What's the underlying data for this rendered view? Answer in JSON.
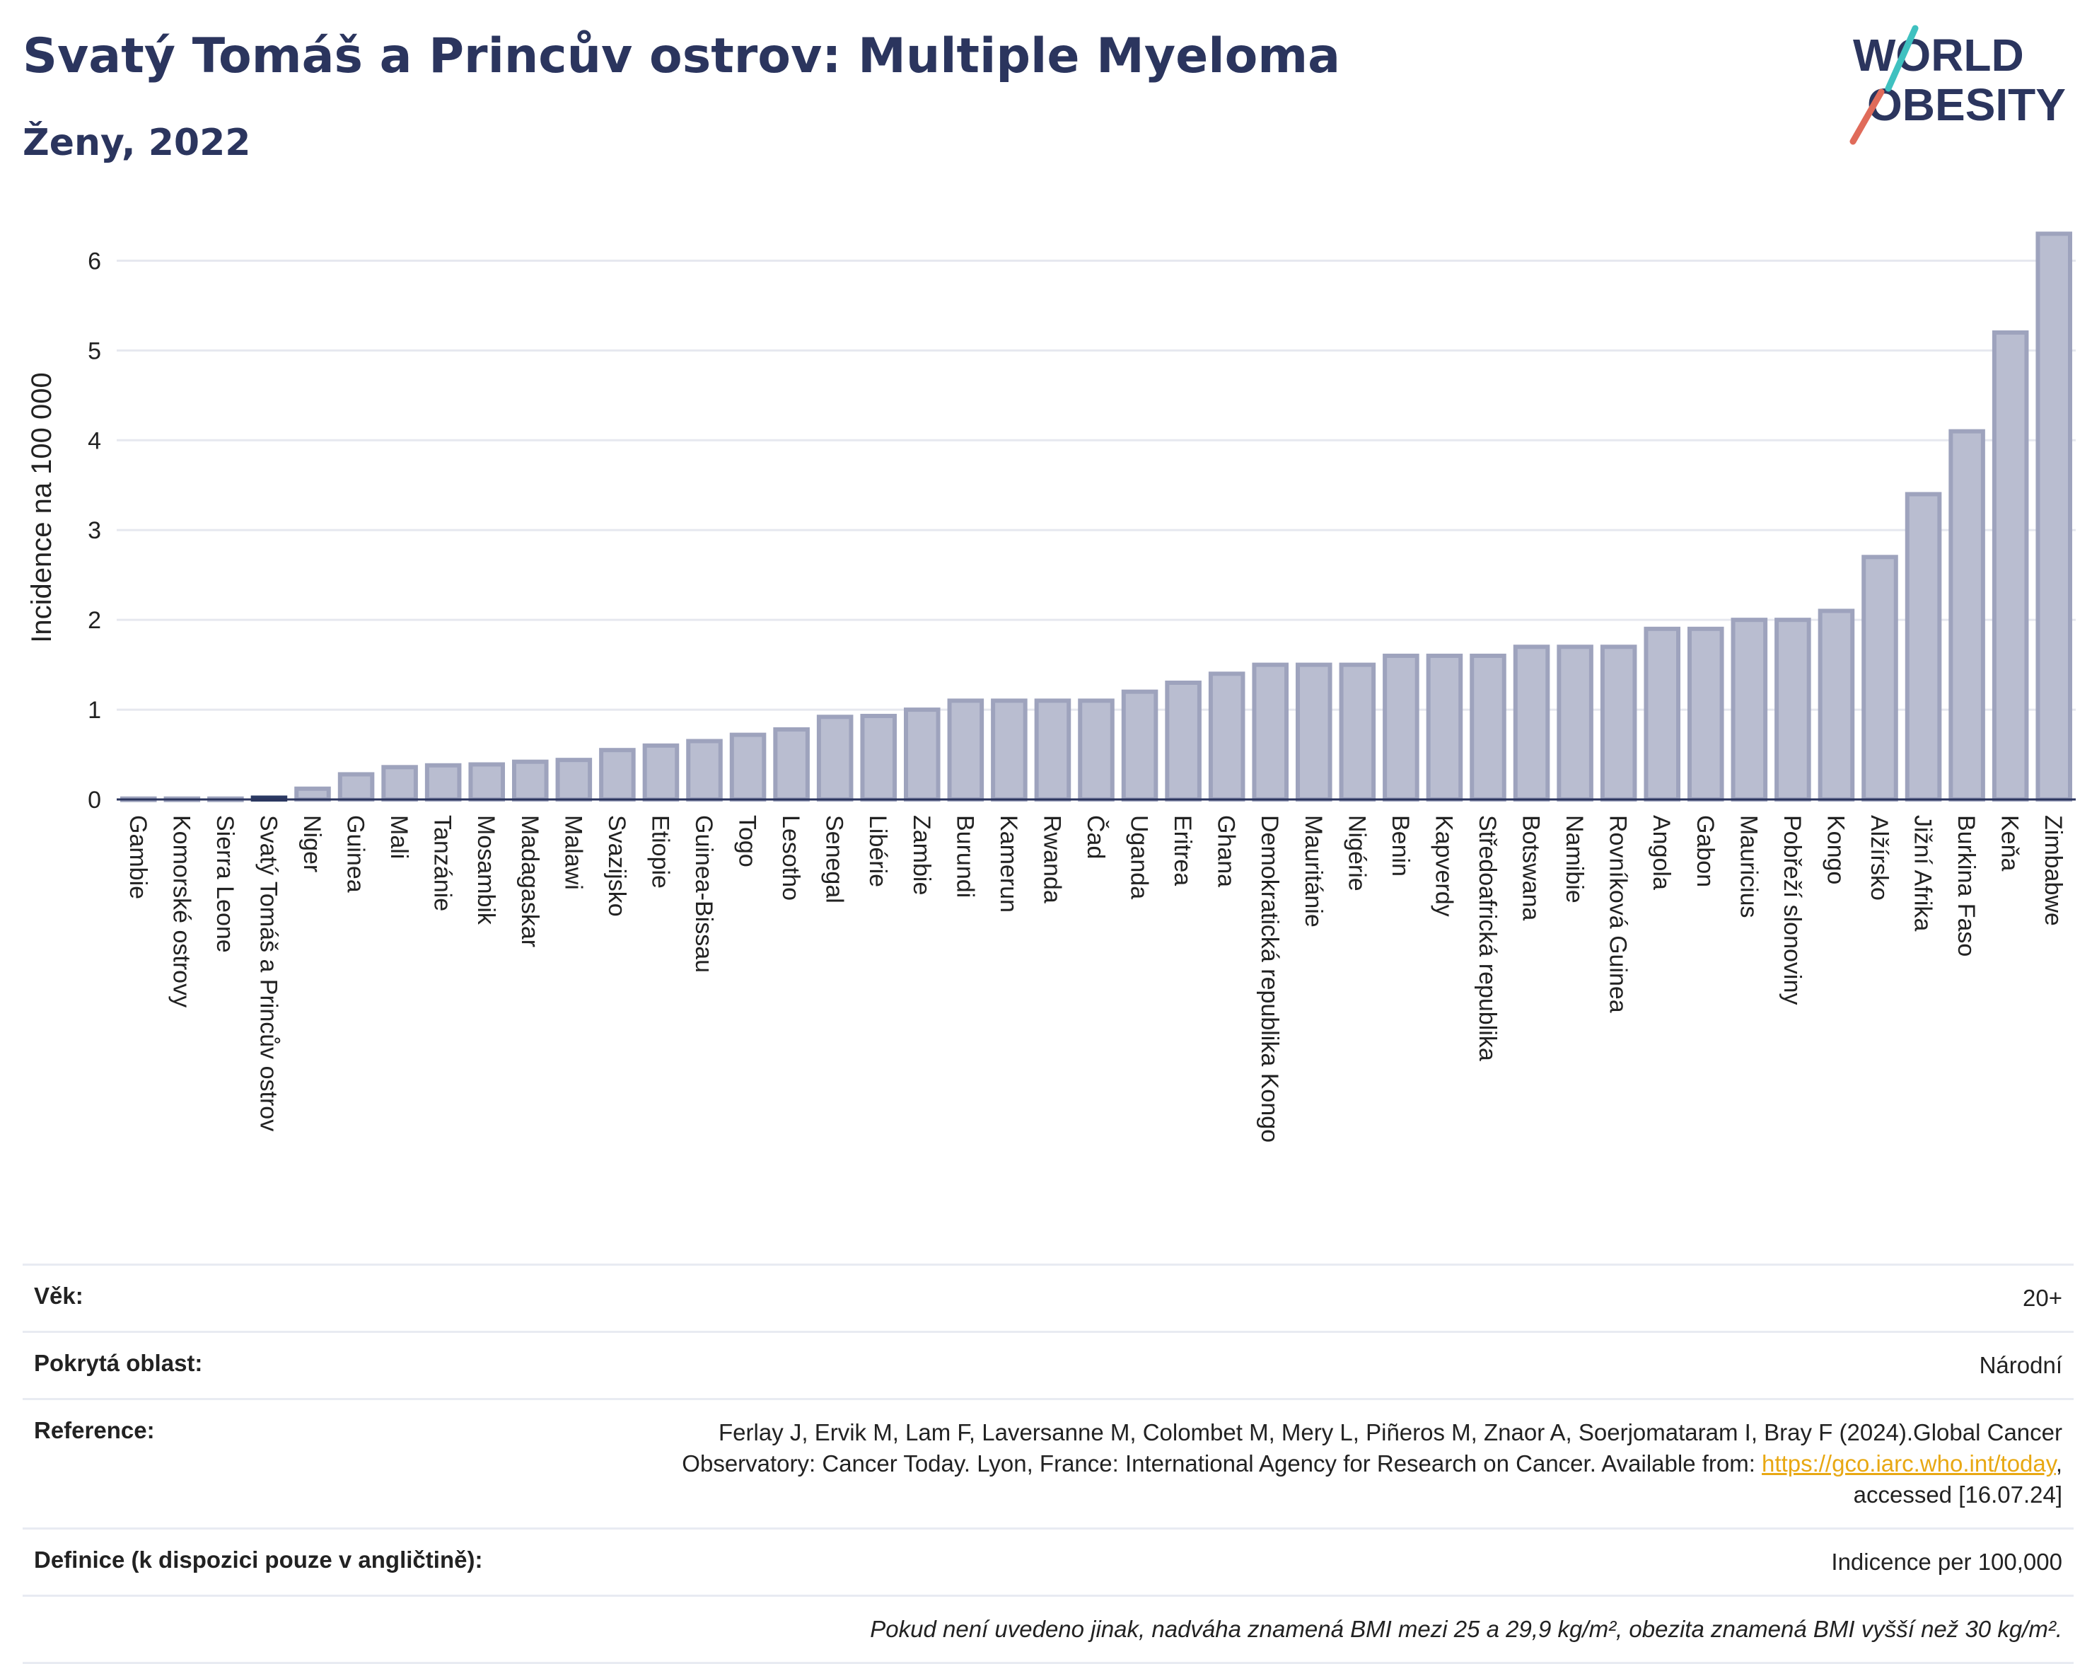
{
  "header": {
    "title": "Svatý Tomáš a Princův ostrov: Multiple Myeloma",
    "subtitle": "Ženy, 2022"
  },
  "logo": {
    "line1": "WORLD",
    "line2": "OBESITY"
  },
  "colors": {
    "bar": "#b9bdd0",
    "bar_border": "#9ea3bd",
    "highlight": "#2b3a63",
    "text": "#2b355e",
    "grid": "#e6e8ef"
  },
  "chart_data": {
    "type": "bar",
    "ylabel": "Incidence na 100 000",
    "ylim": [
      0,
      6.5
    ],
    "yticks": [
      0,
      1,
      2,
      3,
      4,
      5,
      6
    ],
    "highlight": "Svatý Tomáš a Princův ostrov",
    "categories": [
      "Gambie",
      "Komorské ostrovy",
      "Sierra Leone",
      "Svatý Tomáš a Princův ostrov",
      "Niger",
      "Guinea",
      "Mali",
      "Tanzánie",
      "Mosambik",
      "Madagaskar",
      "Malawi",
      "Svazijsko",
      "Etiopie",
      "Guinea-Bissau",
      "Togo",
      "Lesotho",
      "Senegal",
      "Libérie",
      "Zambie",
      "Burundi",
      "Kamerun",
      "Rwanda",
      "Čad",
      "Uganda",
      "Eritrea",
      "Ghana",
      "Demokratická republika Kongo",
      "Mauritánie",
      "Nigérie",
      "Benin",
      "Kapverdy",
      "Středoafrická republika",
      "Botswana",
      "Namibie",
      "Rovníková Guinea",
      "Angola",
      "Gabon",
      "Mauricius",
      "Pobřeží slonoviny",
      "Kongo",
      "Alžírsko",
      "Jižní Afrika",
      "Burkina Faso",
      "Keňa",
      "Zimbabwe"
    ],
    "values": [
      0.01,
      0.01,
      0.01,
      0.02,
      0.12,
      0.28,
      0.36,
      0.38,
      0.39,
      0.42,
      0.44,
      0.55,
      0.6,
      0.65,
      0.72,
      0.78,
      0.92,
      0.93,
      1.0,
      1.1,
      1.1,
      1.1,
      1.1,
      1.2,
      1.3,
      1.4,
      1.5,
      1.5,
      1.5,
      1.6,
      1.6,
      1.6,
      1.7,
      1.7,
      1.7,
      1.9,
      1.9,
      2.0,
      2.0,
      2.1,
      2.7,
      3.4,
      4.1,
      5.2,
      6.3
    ]
  },
  "info": {
    "age_label": "Věk:",
    "age_value": "20+",
    "area_label": "Pokrytá oblast:",
    "area_value": "Národní",
    "ref_label": "Reference:",
    "ref_text_1": "Ferlay J, Ervik M, Lam F, Laversanne M, Colombet M, Mery L, Piñeros M, Znaor A, Soerjomataram I, Bray F (2024).Global Cancer Observatory: Cancer Today. Lyon, France: International Agency for Research on Cancer. Available from: ",
    "ref_link": "https://gco.iarc.who.int/today",
    "ref_text_2": ", accessed [16.07.24]",
    "def_label": "Definice (k dispozici pouze v angličtině):",
    "def_value": "Indicence per 100,000",
    "note": "Pokud není uvedeno jinak, nadváha znamená BMI mezi 25 a 29,9 kg/m², obezita znamená BMI vyšší než 30 kg/m²."
  }
}
